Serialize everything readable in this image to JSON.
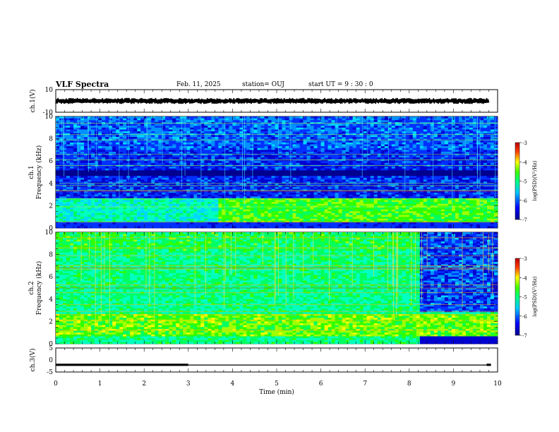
{
  "header": {
    "title": "VLF Spectra",
    "date": "Feb. 11, 2025",
    "station": "station= OUJ",
    "start": "start  UT =   9  : 30 : 0"
  },
  "colors": {
    "spectrogram_scale": [
      "#00008f",
      "#0000ff",
      "#00b4ff",
      "#00ffb0",
      "#00ff00",
      "#b4ff00",
      "#ffff00",
      "#ff8000",
      "#ff0000",
      "#8f0000"
    ],
    "trace": "#000000",
    "gridline_bright": "#9aff4a"
  },
  "chart_data": [
    {
      "type": "line",
      "name": "waveform-ch1",
      "ylabel": "ch.1(V)",
      "ylim": [
        -10,
        10
      ],
      "yticks": [
        "10",
        "-10"
      ],
      "description_values": {
        "center": 0,
        "amplitude": 2
      }
    },
    {
      "type": "heatmap",
      "name": "spectrogram-ch1",
      "ylabel_top": "ch.1",
      "ylabel": "Frequency (kHz)",
      "ylim": [
        0,
        10
      ],
      "yticks": [
        "0",
        "2",
        "4",
        "6",
        "8",
        "10"
      ],
      "colorbar": {
        "label": "log(PSD)(V²/Hz)",
        "range": [
          -7,
          -3
        ],
        "ticks": [
          "-3",
          "-4",
          "-5",
          "-6",
          "-7"
        ]
      }
    },
    {
      "type": "heatmap",
      "name": "spectrogram-ch2",
      "ylabel_top": "ch.2",
      "ylabel": "Frequency (kHz)",
      "ylim": [
        0,
        10
      ],
      "yticks": [
        "0",
        "2",
        "4",
        "6",
        "8",
        "10"
      ],
      "regime_change_min": 8.2,
      "colorbar": {
        "label": "log(PSD)(V²/Hz)",
        "range": [
          -7,
          -3
        ],
        "ticks": [
          "-3",
          "-4",
          "-5",
          "-6",
          "-7"
        ]
      }
    },
    {
      "type": "line",
      "name": "waveform-ch3",
      "ylabel": "ch.3(V)",
      "ylim": [
        -5,
        5
      ],
      "yticks": [
        "5",
        "0",
        "-5"
      ],
      "segments": [
        {
          "x": [
            0,
            3
          ],
          "y": -2
        },
        {
          "x": [
            3,
            9.75
          ],
          "y": -2.1
        },
        {
          "x": [
            9.75,
            10
          ],
          "y": -2
        }
      ]
    }
  ],
  "xaxis": {
    "label": "Time (min)",
    "xlim": [
      0,
      10
    ],
    "ticks": [
      "0",
      "1",
      "2",
      "3",
      "4",
      "5",
      "6",
      "7",
      "8",
      "9",
      "10"
    ]
  }
}
